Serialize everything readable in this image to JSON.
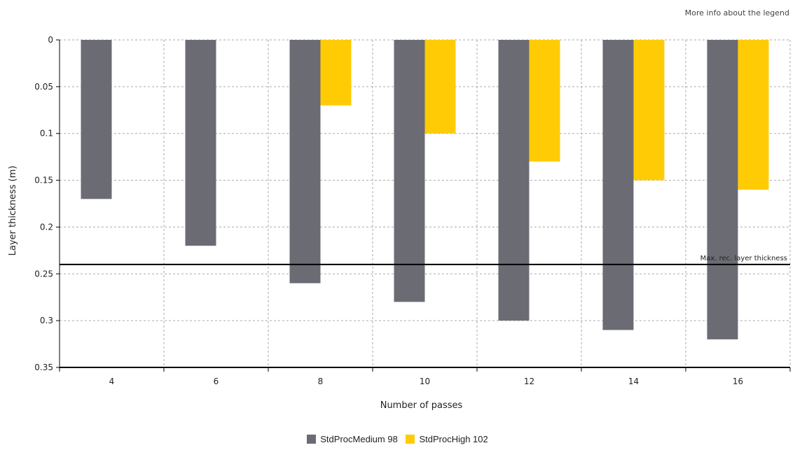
{
  "legend_info_link": "More info about the legend",
  "colors": {
    "series1": "#6b6b74",
    "series2": "#ffcb05",
    "grid": "#aaaaaa",
    "axis": "#000000"
  },
  "chart_data": {
    "type": "bar",
    "xlabel": "Number of passes",
    "ylabel": "Layer thickness (m)",
    "categories": [
      "4",
      "6",
      "8",
      "10",
      "12",
      "14",
      "16"
    ],
    "series": [
      {
        "name": "StdProcMedium 98",
        "values": [
          0.17,
          0.22,
          0.26,
          0.28,
          0.3,
          0.31,
          0.32
        ]
      },
      {
        "name": "StdProcHigh 102",
        "values": [
          null,
          null,
          0.07,
          0.1,
          0.13,
          0.15,
          0.16
        ]
      }
    ],
    "ylim": [
      0,
      0.35
    ],
    "y_inverted": true,
    "yticks": [
      "0",
      "0.05",
      "0.1",
      "0.15",
      "0.2",
      "0.25",
      "0.3",
      "0.35"
    ],
    "ytick_values": [
      0,
      0.05,
      0.1,
      0.15,
      0.2,
      0.25,
      0.3,
      0.35
    ],
    "grid": true,
    "reference_line": {
      "value": 0.24,
      "label": "Max. rec. layer thickness"
    },
    "legend_position": "bottom"
  }
}
